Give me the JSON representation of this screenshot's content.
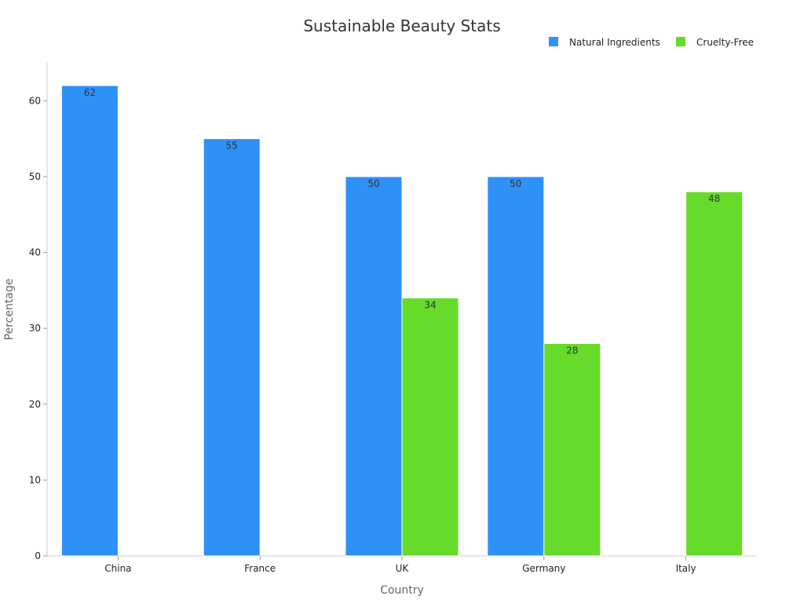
{
  "chart_data": {
    "type": "bar",
    "title": "Sustainable Beauty Stats",
    "xlabel": "Country",
    "ylabel": "Percentage",
    "categories": [
      "China",
      "France",
      "UK",
      "Germany",
      "Italy"
    ],
    "series": [
      {
        "name": "Natural Ingredients",
        "color": "#2e91f8",
        "values": [
          62,
          55,
          50,
          50,
          null
        ]
      },
      {
        "name": "Cruelty-Free",
        "color": "#66db29",
        "values": [
          null,
          null,
          34,
          28,
          48
        ]
      }
    ],
    "ylim": [
      0,
      65
    ],
    "yticks": [
      0,
      10,
      20,
      30,
      40,
      50,
      60
    ],
    "grid": false,
    "legend_position": "top-right"
  }
}
